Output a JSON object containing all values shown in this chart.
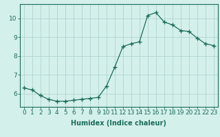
{
  "x": [
    0,
    1,
    2,
    3,
    4,
    5,
    6,
    7,
    8,
    9,
    10,
    11,
    12,
    13,
    14,
    15,
    16,
    17,
    18,
    19,
    20,
    21,
    22,
    23
  ],
  "y": [
    6.3,
    6.2,
    5.9,
    5.7,
    5.6,
    5.6,
    5.65,
    5.7,
    5.75,
    5.8,
    6.4,
    7.4,
    8.5,
    8.65,
    8.75,
    10.15,
    10.3,
    9.8,
    9.65,
    9.35,
    9.3,
    8.95,
    8.65,
    8.55
  ],
  "line_color": "#1a6b5a",
  "marker": "+",
  "marker_size": 4,
  "background_color": "#d4f0eb",
  "grid_color": "#b0d4ce",
  "axis_color": "#1a6b5a",
  "xlabel": "Humidex (Indice chaleur)",
  "xlim": [
    -0.5,
    23.5
  ],
  "ylim": [
    5.3,
    10.75
  ],
  "yticks": [
    6,
    7,
    8,
    9,
    10
  ],
  "xticks": [
    0,
    1,
    2,
    3,
    4,
    5,
    6,
    7,
    8,
    9,
    10,
    11,
    12,
    13,
    14,
    15,
    16,
    17,
    18,
    19,
    20,
    21,
    22,
    23
  ],
  "xlabel_fontsize": 7,
  "tick_fontsize": 6.5
}
